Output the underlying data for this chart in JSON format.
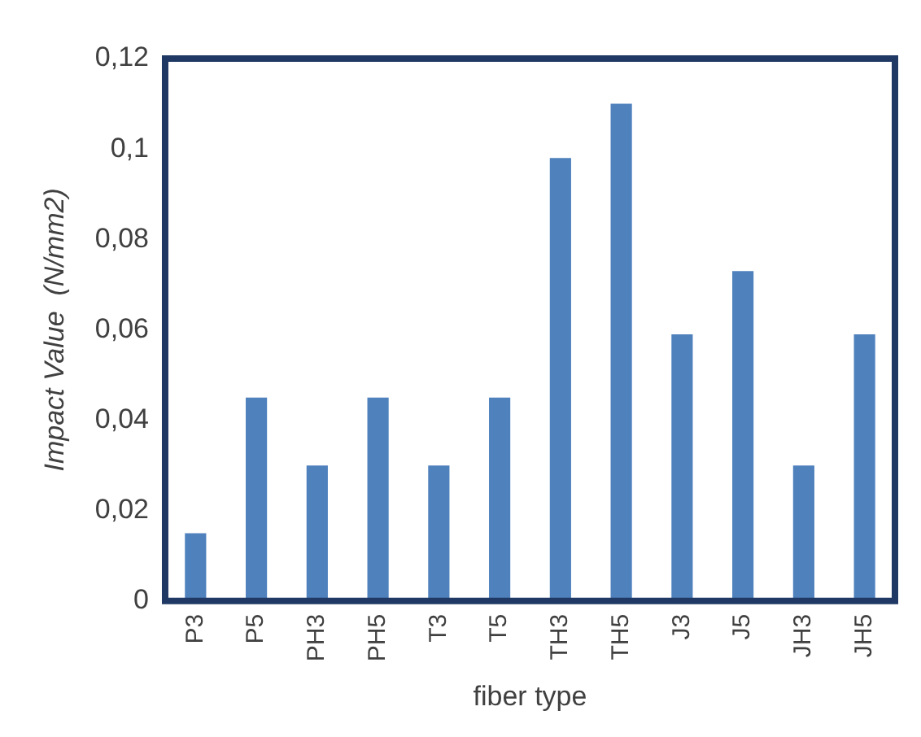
{
  "chart_data": {
    "type": "bar",
    "xlabel": "fiber type",
    "ylabel": "Impact Value  (N/mm2)",
    "categories": [
      "P3",
      "P5",
      "PH3",
      "PH5",
      "T3",
      "T5",
      "TH3",
      "TH5",
      "J3",
      "J5",
      "JH3",
      "JH5"
    ],
    "values": [
      0.015,
      0.045,
      0.03,
      0.045,
      0.03,
      0.045,
      0.098,
      0.11,
      0.059,
      0.073,
      0.03,
      0.059
    ],
    "color": "#4f81bd",
    "ylim": [
      0,
      0.12
    ],
    "yticks": [
      {
        "value": 0,
        "label": "0"
      },
      {
        "value": 0.02,
        "label": "0,02"
      },
      {
        "value": 0.04,
        "label": "0,04"
      },
      {
        "value": 0.06,
        "label": "0,06"
      },
      {
        "value": 0.08,
        "label": "0,08"
      },
      {
        "value": 0.1,
        "label": "0,1"
      },
      {
        "value": 0.12,
        "label": "0,12"
      }
    ],
    "grid": false,
    "legend": false
  }
}
